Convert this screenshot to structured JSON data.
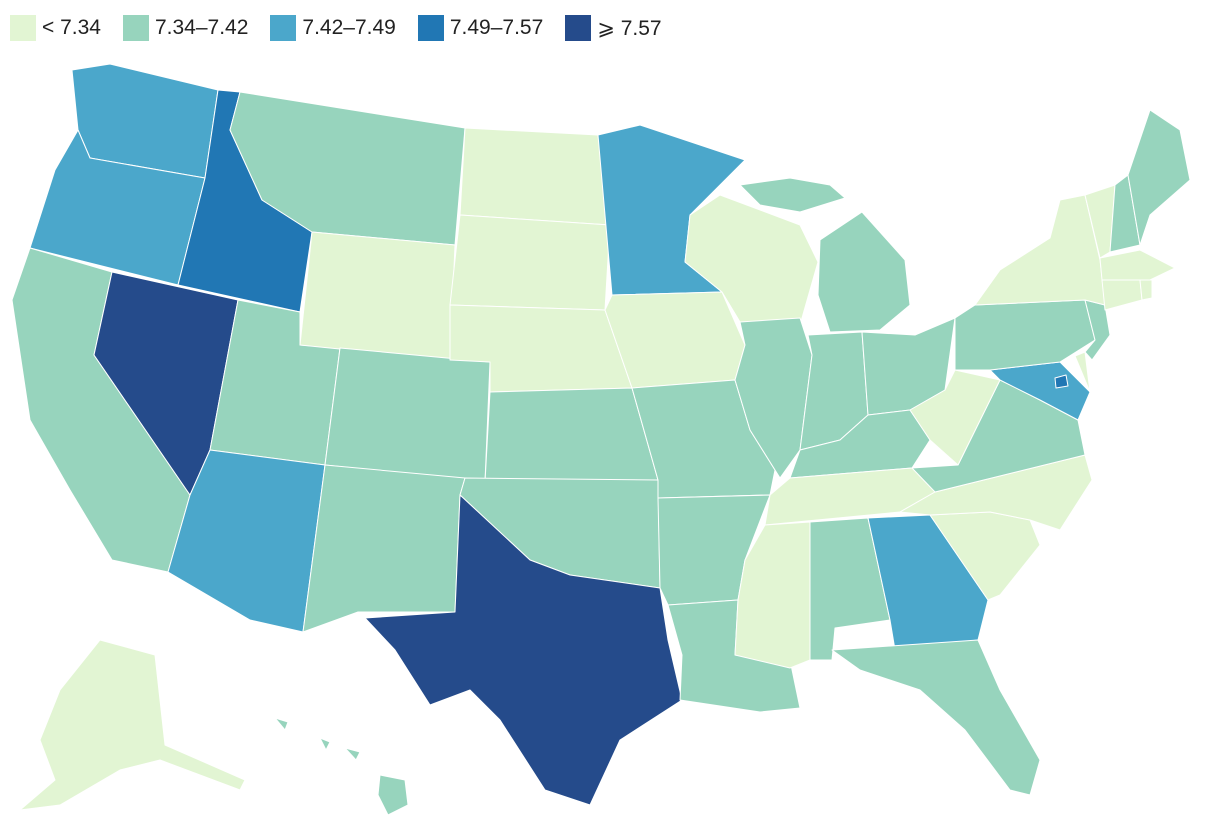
{
  "legend": {
    "items": [
      {
        "label": "< 7.34",
        "color": "#e2f5d3"
      },
      {
        "label": "7.34–7.42",
        "color": "#97d4bd"
      },
      {
        "label": "7.42–7.49",
        "color": "#4ba7cb"
      },
      {
        "label": "7.49–7.57",
        "color": "#2177b4"
      },
      {
        "label": "⩾ 7.57",
        "color": "#254b8b"
      }
    ]
  },
  "states": [
    {
      "id": "WA",
      "class": 2
    },
    {
      "id": "OR",
      "class": 2
    },
    {
      "id": "CA",
      "class": 1
    },
    {
      "id": "ID",
      "class": 3
    },
    {
      "id": "NV",
      "class": 4
    },
    {
      "id": "AZ",
      "class": 2
    },
    {
      "id": "UT",
      "class": 1
    },
    {
      "id": "MT",
      "class": 1
    },
    {
      "id": "WY",
      "class": 0
    },
    {
      "id": "CO",
      "class": 1
    },
    {
      "id": "NM",
      "class": 1
    },
    {
      "id": "ND",
      "class": 0
    },
    {
      "id": "SD",
      "class": 0
    },
    {
      "id": "NE",
      "class": 0
    },
    {
      "id": "KS",
      "class": 1
    },
    {
      "id": "OK",
      "class": 1
    },
    {
      "id": "TX",
      "class": 4
    },
    {
      "id": "MN",
      "class": 2
    },
    {
      "id": "IA",
      "class": 0
    },
    {
      "id": "MO",
      "class": 1
    },
    {
      "id": "AR",
      "class": 1
    },
    {
      "id": "LA",
      "class": 1
    },
    {
      "id": "WI",
      "class": 0
    },
    {
      "id": "IL",
      "class": 1
    },
    {
      "id": "MI",
      "class": 1
    },
    {
      "id": "IN",
      "class": 1
    },
    {
      "id": "OH",
      "class": 1
    },
    {
      "id": "KY",
      "class": 1
    },
    {
      "id": "TN",
      "class": 0
    },
    {
      "id": "MS",
      "class": 0
    },
    {
      "id": "AL",
      "class": 1
    },
    {
      "id": "GA",
      "class": 2
    },
    {
      "id": "FL",
      "class": 1
    },
    {
      "id": "SC",
      "class": 0
    },
    {
      "id": "NC",
      "class": 0
    },
    {
      "id": "VA",
      "class": 1
    },
    {
      "id": "WV",
      "class": 0
    },
    {
      "id": "MD",
      "class": 2
    },
    {
      "id": "DE",
      "class": 0
    },
    {
      "id": "PA",
      "class": 1
    },
    {
      "id": "NJ",
      "class": 1
    },
    {
      "id": "NY",
      "class": 0
    },
    {
      "id": "CT",
      "class": 0
    },
    {
      "id": "RI",
      "class": 0
    },
    {
      "id": "MA",
      "class": 0
    },
    {
      "id": "VT",
      "class": 0
    },
    {
      "id": "NH",
      "class": 1
    },
    {
      "id": "ME",
      "class": 1
    },
    {
      "id": "AK",
      "class": 0
    },
    {
      "id": "HI",
      "class": 1
    },
    {
      "id": "DC",
      "class": 3
    }
  ]
}
